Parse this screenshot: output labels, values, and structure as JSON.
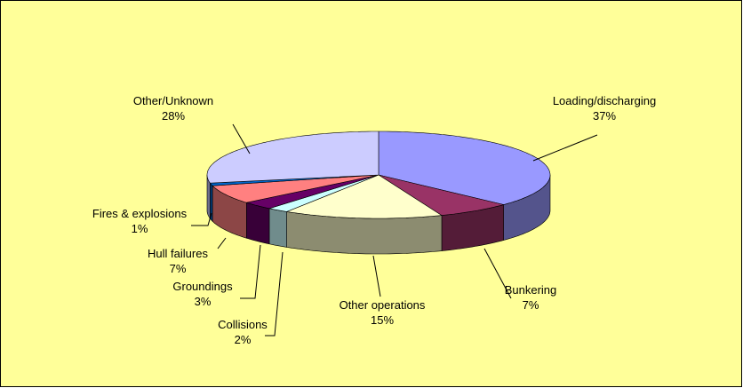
{
  "chart_data": {
    "type": "pie3d",
    "categories": [
      "Loading/discharging",
      "Bunkering",
      "Other operations",
      "Collisions",
      "Groundings",
      "Hull failures",
      "Fires & explosions",
      "Other/Unknown"
    ],
    "values": [
      37,
      7,
      15,
      2,
      3,
      7,
      1,
      28
    ],
    "value_labels": [
      "37%",
      "7%",
      "15%",
      "2%",
      "3%",
      "7%",
      "1%",
      "28%"
    ],
    "colors": [
      "#9999FF",
      "#993366",
      "#FFFFCC",
      "#CCFFFF",
      "#660066",
      "#FF8080",
      "#0066CC",
      "#CCCCFF"
    ]
  }
}
